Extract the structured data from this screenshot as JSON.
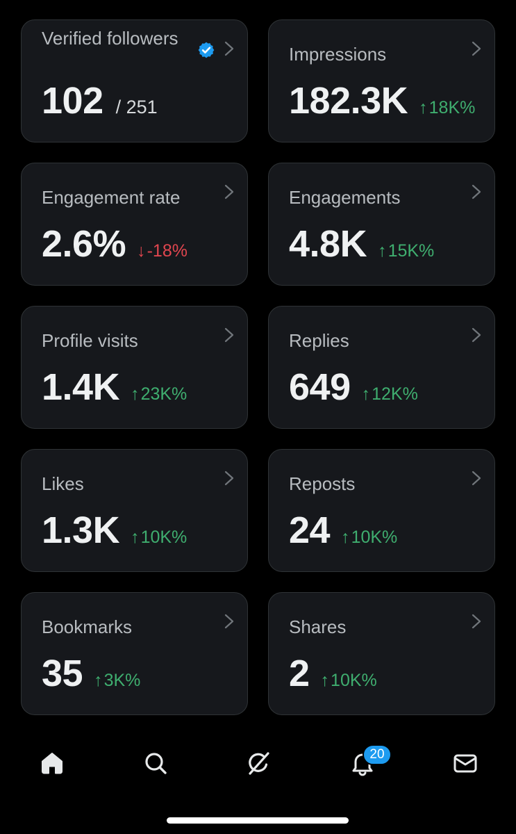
{
  "cards": [
    {
      "label": "Verified followers",
      "value": "102",
      "suffix": "/ 251",
      "delta": "",
      "trend": "",
      "verified": true
    },
    {
      "label": "Impressions",
      "value": "182.3K",
      "suffix": "",
      "delta": "18K%",
      "trend": "up"
    },
    {
      "label": "Engagement rate",
      "value": "2.6%",
      "suffix": "",
      "delta": "-18%",
      "trend": "down"
    },
    {
      "label": "Engagements",
      "value": "4.8K",
      "suffix": "",
      "delta": "15K%",
      "trend": "up"
    },
    {
      "label": "Profile visits",
      "value": "1.4K",
      "suffix": "",
      "delta": "23K%",
      "trend": "up"
    },
    {
      "label": "Replies",
      "value": "649",
      "suffix": "",
      "delta": "12K%",
      "trend": "up"
    },
    {
      "label": "Likes",
      "value": "1.3K",
      "suffix": "",
      "delta": "10K%",
      "trend": "up"
    },
    {
      "label": "Reposts",
      "value": "24",
      "suffix": "",
      "delta": "10K%",
      "trend": "up"
    },
    {
      "label": "Bookmarks",
      "value": "35",
      "suffix": "",
      "delta": "3K%",
      "trend": "up"
    },
    {
      "label": "Shares",
      "value": "2",
      "suffix": "",
      "delta": "10K%",
      "trend": "up"
    }
  ],
  "arrows": {
    "up": "↑",
    "down": "↓"
  },
  "icons": {
    "chevron": "chevron-right-icon",
    "verified": "verified-badge-icon"
  },
  "nav": {
    "items": [
      "home-icon",
      "search-icon",
      "grok-icon",
      "notifications-icon",
      "messages-icon"
    ],
    "notification_count": "20"
  },
  "colors": {
    "background": "#000000",
    "card": "#16181c",
    "up": "#3fae6f",
    "down": "#e0464f",
    "accent": "#1d9bf0"
  }
}
